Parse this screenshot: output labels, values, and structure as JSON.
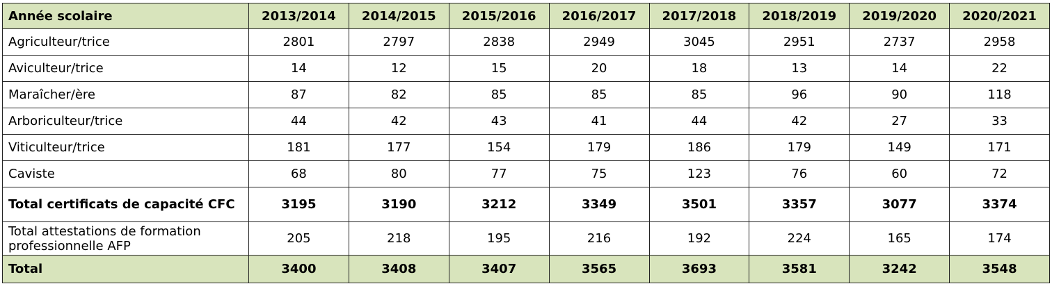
{
  "table": {
    "header": [
      "Année scolaire",
      "2013/2014",
      "2014/2015",
      "2015/2016",
      "2016/2017",
      "2017/2018",
      "2018/2019",
      "2019/2020",
      "2020/2021"
    ],
    "rows": [
      [
        "Agriculteur/trice",
        2801,
        2797,
        2838,
        2949,
        3045,
        2951,
        2737,
        2958
      ],
      [
        "Aviculteur/trice",
        14,
        12,
        15,
        20,
        18,
        13,
        14,
        22
      ],
      [
        "Maraîcher/ère",
        87,
        82,
        85,
        85,
        85,
        96,
        90,
        118
      ],
      [
        "Arboriculteur/trice",
        44,
        42,
        43,
        41,
        44,
        42,
        27,
        33
      ],
      [
        "Viticulteur/trice",
        181,
        177,
        154,
        179,
        186,
        179,
        149,
        171
      ],
      [
        "Caviste",
        68,
        80,
        77,
        75,
        123,
        76,
        60,
        72
      ],
      [
        "Total certificats de capacité CFC",
        3195,
        3190,
        3212,
        3349,
        3501,
        3357,
        3077,
        3374
      ],
      [
        "Total attestations de formation professionnelle AFP",
        205,
        218,
        195,
        216,
        192,
        224,
        165,
        174
      ],
      [
        "Total",
        3400,
        3408,
        3407,
        3565,
        3693,
        3581,
        3242,
        3548
      ]
    ]
  }
}
